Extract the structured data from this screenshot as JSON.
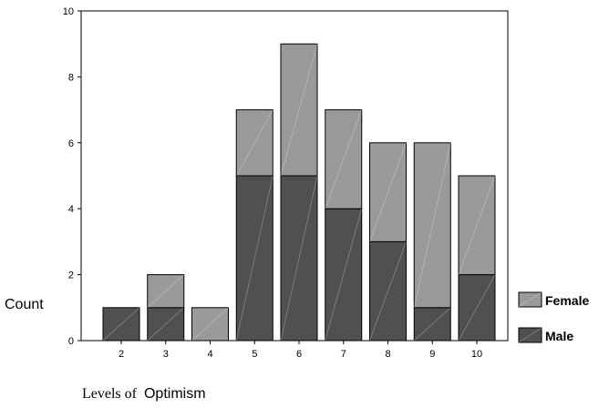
{
  "chart_data": {
    "type": "bar",
    "stacked": true,
    "categories": [
      "2",
      "3",
      "4",
      "5",
      "6",
      "7",
      "8",
      "9",
      "10"
    ],
    "series": [
      {
        "name": "Male",
        "values": [
          1,
          1,
          0,
          5,
          5,
          4,
          3,
          1,
          2
        ],
        "color": "#505050"
      },
      {
        "name": "Female",
        "values": [
          0,
          1,
          1,
          2,
          4,
          3,
          3,
          5,
          3
        ],
        "color": "#9a9a9a"
      }
    ],
    "ylim": [
      0,
      10
    ],
    "yticks": [
      "0",
      "2",
      "4",
      "6",
      "8",
      "10"
    ],
    "ylabel": "Count",
    "xlabel": {
      "part1": "Levels of",
      "part2": "Optimism"
    },
    "legend": {
      "position": "right",
      "order": [
        "Female",
        "Male"
      ]
    },
    "grid": false
  }
}
